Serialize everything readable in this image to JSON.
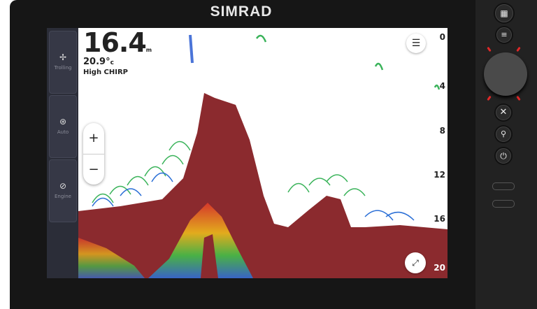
{
  "brand": "SIMRAD",
  "sidebar": {
    "items": [
      {
        "label": "Trolling",
        "icon": "propeller-icon"
      },
      {
        "label": "Auto",
        "icon": "steering-wheel-icon"
      },
      {
        "label": "Engine",
        "icon": "engine-icon"
      }
    ]
  },
  "readout": {
    "depth": "16.4",
    "depth_unit": "m",
    "temperature": "20.9°",
    "temp_unit": "c",
    "mode": "High CHIRP"
  },
  "zoom": {
    "in": "+",
    "out": "−"
  },
  "depth_scale": [
    "0",
    "4",
    "8",
    "12",
    "16",
    "20"
  ],
  "colors": {
    "bottom": "#8b2a2e",
    "background": "#ffffff",
    "bezel": "#161616",
    "led": "#e02828"
  },
  "hardware_buttons": [
    "apps-icon",
    "menu-icon",
    "rotary-knob",
    "close-icon",
    "waypoint-icon",
    "power-icon"
  ]
}
